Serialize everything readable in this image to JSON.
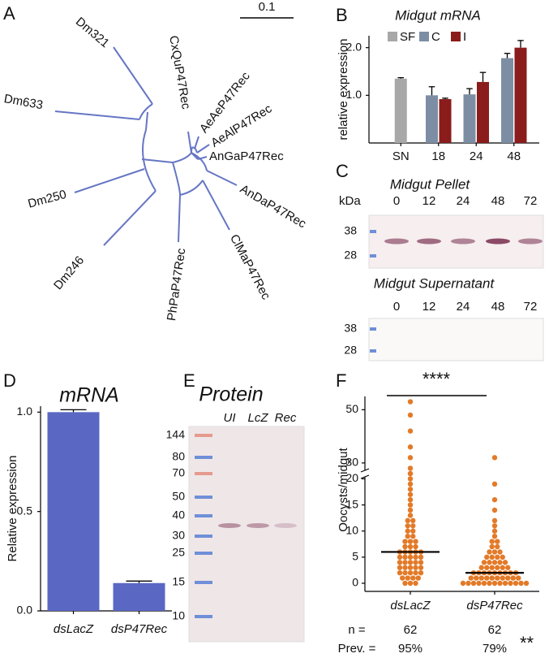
{
  "panel_labels": [
    "A",
    "B",
    "C",
    "D",
    "E",
    "F"
  ],
  "tree": {
    "leaves": [
      "Dm321",
      "Dm633",
      "Dm250",
      "Dm246",
      "PhPaP47Rec",
      "ClMaP47Rec",
      "AnDaP47Rec",
      "AnGaP47Rec",
      "AeAlP47Rec",
      "AeAeP47Rec",
      "CxQuP47Rec"
    ],
    "scale_label": "0.1"
  },
  "chart_data": [
    {
      "type": "bar",
      "title": "Midgut mRNA",
      "ylabel": "relative expression",
      "categories": [
        "SN",
        "18",
        "24",
        "48"
      ],
      "series": [
        {
          "name": "SF",
          "color": "#a8a8a8",
          "values": [
            1.35,
            null,
            null,
            null
          ],
          "errors": [
            0.02,
            null,
            null,
            null
          ]
        },
        {
          "name": "C",
          "color": "#7d8ea4",
          "values": [
            null,
            1.0,
            1.02,
            1.78
          ],
          "errors": [
            null,
            0.18,
            0.12,
            0.1
          ]
        },
        {
          "name": "I",
          "color": "#8b1c1c",
          "values": [
            null,
            0.92,
            1.28,
            2.0
          ],
          "errors": [
            null,
            0.02,
            0.2,
            0.15
          ]
        }
      ],
      "ylim": [
        0,
        2.25
      ],
      "yticks": [
        {
          "value": 1,
          "label": "1.0"
        },
        {
          "value": 2,
          "label": "2.0"
        }
      ]
    },
    {
      "type": "bar",
      "title": "mRNA",
      "ylabel": "Relative expression",
      "categories": [
        "dsLacZ",
        "dsP47Rec"
      ],
      "values": [
        1.0,
        0.14
      ],
      "errors": [
        0.012,
        0.01
      ],
      "color": "#5a68c4",
      "ylim": [
        0,
        1.03
      ],
      "yticks": [
        {
          "value": 0,
          "label": "0.0"
        },
        {
          "value": 0.5,
          "label": "0.5"
        },
        {
          "value": 1,
          "label": "1.0"
        }
      ]
    },
    {
      "type": "dot",
      "ylabel": "Oocysts/midgut",
      "categories": [
        "dsLacZ",
        "dsP47Rec"
      ],
      "color": "#e37a28",
      "points": [
        [
          0,
          0,
          0,
          1,
          1,
          1,
          1,
          2,
          2,
          2,
          2,
          2,
          3,
          3,
          3,
          3,
          3,
          4,
          4,
          4,
          4,
          4,
          5,
          5,
          5,
          5,
          5,
          6,
          6,
          6,
          6,
          6,
          7,
          7,
          7,
          8,
          8,
          8,
          9,
          9,
          10,
          10,
          11,
          11,
          12,
          12,
          13,
          14,
          15,
          16,
          17,
          18,
          19,
          20,
          21,
          26,
          28,
          32,
          36,
          42,
          48,
          53
        ],
        [
          0,
          0,
          0,
          0,
          0,
          0,
          0,
          0,
          0,
          0,
          0,
          0,
          0,
          1,
          1,
          1,
          1,
          1,
          1,
          1,
          1,
          1,
          1,
          2,
          2,
          2,
          2,
          2,
          2,
          2,
          2,
          2,
          3,
          3,
          3,
          3,
          3,
          3,
          4,
          4,
          4,
          4,
          4,
          5,
          5,
          5,
          5,
          6,
          6,
          6,
          7,
          7,
          8,
          8,
          9,
          10,
          11,
          12,
          14,
          16,
          19,
          32
        ]
      ],
      "medians": [
        6,
        2
      ],
      "ylim": [
        0,
        55
      ],
      "ybreak": [
        21,
        26
      ],
      "yticks": [
        0,
        5,
        10,
        15,
        20,
        30,
        50
      ],
      "annotations": [
        "****",
        "**"
      ]
    }
  ],
  "blots": [
    {
      "title": "Midgut Pellet",
      "unit": "kDa",
      "lanes": [
        "0",
        "12",
        "24",
        "48",
        "72"
      ],
      "markers": [
        "38",
        "28"
      ]
    },
    {
      "title": "Midgut Supernatant",
      "lanes": [
        "0",
        "12",
        "24",
        "48",
        "72"
      ],
      "markers": [
        "38",
        "28"
      ]
    },
    {
      "title": "Protein",
      "lanes": [
        "UI",
        "LcZ",
        "Rec"
      ],
      "markers": [
        "144",
        "80",
        "70",
        "50",
        "40",
        "30",
        "25",
        "15",
        "10"
      ]
    }
  ],
  "table": {
    "rows": [
      [
        "n =",
        "62",
        "62"
      ],
      [
        "Prev. =",
        "95%",
        "79%"
      ]
    ]
  }
}
